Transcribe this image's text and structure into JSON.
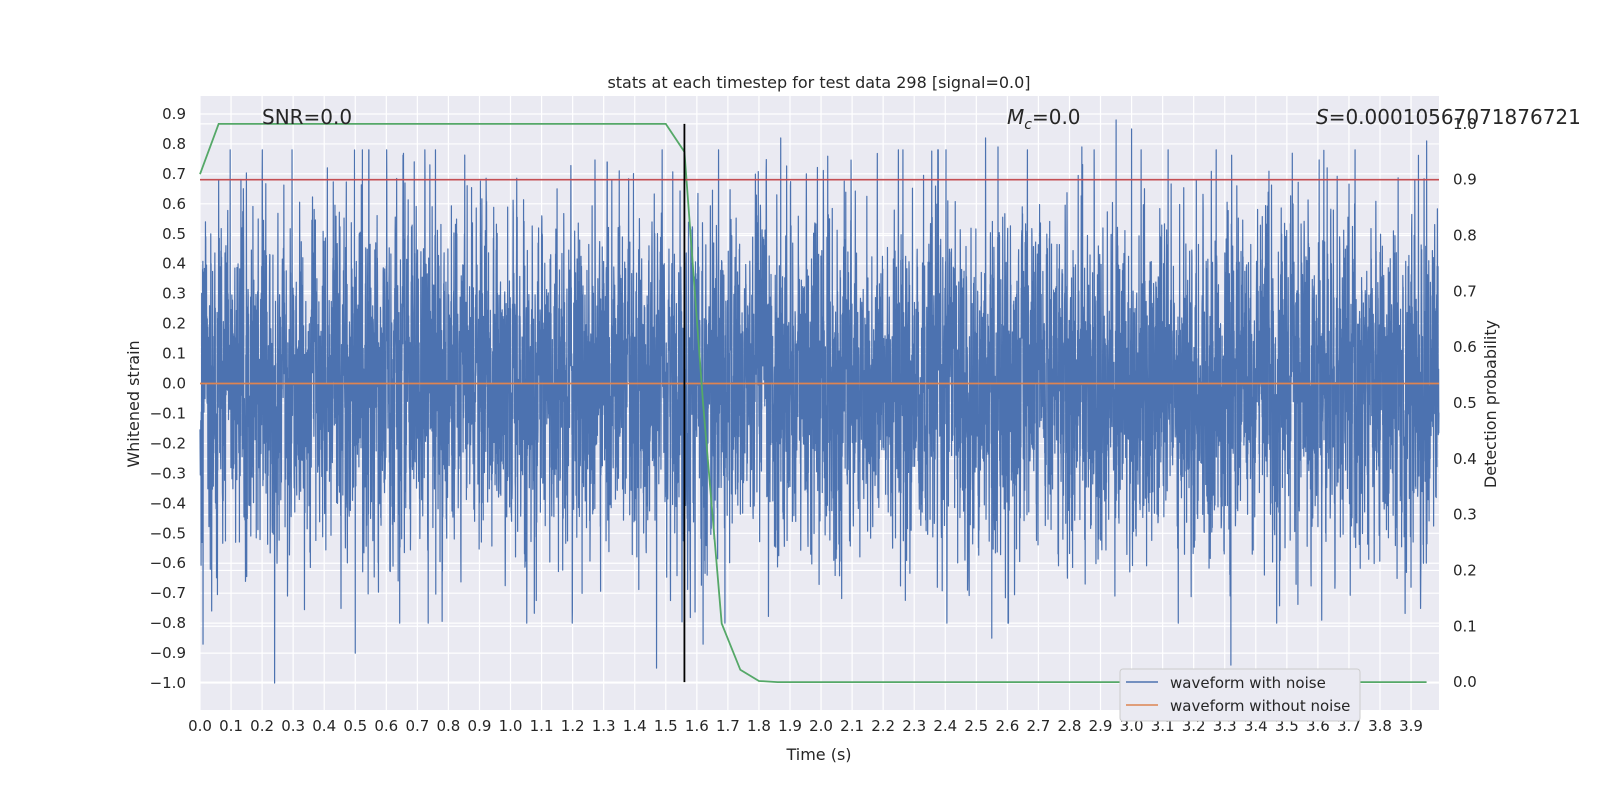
{
  "chart_data": {
    "type": "line",
    "title": "stats at each timestep for test data 298 [signal=0.0]",
    "xlabel": "Time (s)",
    "ylabel": "Whitened strain",
    "y2label": "Detection probability",
    "xlim": [
      0.0,
      3.99
    ],
    "ylim": [
      -1.09,
      0.96
    ],
    "y2lim": [
      -0.05,
      1.05
    ],
    "xticks": [
      "0.0",
      "0.1",
      "0.2",
      "0.3",
      "0.4",
      "0.5",
      "0.6",
      "0.7",
      "0.8",
      "0.9",
      "1.0",
      "1.1",
      "1.2",
      "1.3",
      "1.4",
      "1.5",
      "1.6",
      "1.7",
      "1.8",
      "1.9",
      "2.0",
      "2.1",
      "2.2",
      "2.3",
      "2.4",
      "2.5",
      "2.6",
      "2.7",
      "2.8",
      "2.9",
      "3.0",
      "3.1",
      "3.2",
      "3.3",
      "3.4",
      "3.5",
      "3.6",
      "3.7",
      "3.8",
      "3.9"
    ],
    "yticks": [
      "0.9",
      "0.8",
      "0.7",
      "0.6",
      "0.5",
      "0.4",
      "0.3",
      "0.2",
      "0.1",
      "0.0",
      "-0.1",
      "-0.2",
      "-0.3",
      "-0.4",
      "-0.5",
      "-0.6",
      "-0.7",
      "-0.8",
      "-0.9",
      "-1.0"
    ],
    "y2ticks": [
      "1.0",
      "0.9",
      "0.8",
      "0.7",
      "0.6",
      "0.5",
      "0.4",
      "0.3",
      "0.2",
      "0.1",
      "0.0"
    ],
    "grid": true,
    "legend_position": "lower-right",
    "annotations": {
      "snr": "SNR=0.0",
      "mc_symbol": "M",
      "mc_sub": "c",
      "mc_value": "=0.0",
      "s_symbol": "S",
      "s_value": "=0.00010567071876721"
    },
    "series": [
      {
        "name": "waveform with noise",
        "color": "#4c72b0",
        "axis": "left",
        "sample_rate": 2048,
        "amplitude_std": 0.27,
        "description_peaks": {
          "max_points": [
            {
              "t": 0.06,
              "y": 0.68
            },
            {
              "t": 0.2,
              "y": 0.69
            },
            {
              "t": 0.41,
              "y": 0.72
            },
            {
              "t": 0.69,
              "y": 0.74
            },
            {
              "t": 0.74,
              "y": 0.73
            },
            {
              "t": 1.15,
              "y": 0.65
            },
            {
              "t": 1.35,
              "y": 0.71
            },
            {
              "t": 1.87,
              "y": 0.82
            },
            {
              "t": 2.53,
              "y": 0.82
            },
            {
              "t": 2.57,
              "y": 0.79
            },
            {
              "t": 2.84,
              "y": 0.79
            },
            {
              "t": 2.95,
              "y": 0.88
            },
            {
              "t": 3.0,
              "y": 0.85
            },
            {
              "t": 3.63,
              "y": 0.72
            },
            {
              "t": 3.95,
              "y": 0.81
            }
          ],
          "min_points": [
            {
              "t": 0.01,
              "y": -0.87
            },
            {
              "t": 0.24,
              "y": -1.0
            },
            {
              "t": 0.5,
              "y": -0.9
            },
            {
              "t": 1.47,
              "y": -0.95
            },
            {
              "t": 1.62,
              "y": -0.87
            },
            {
              "t": 2.55,
              "y": -0.85
            },
            {
              "t": 3.32,
              "y": -0.94
            },
            {
              "t": 3.9,
              "y": -0.68
            }
          ]
        }
      },
      {
        "name": "waveform without noise",
        "color": "#dd8452",
        "axis": "left",
        "x": [
          0.0,
          3.99
        ],
        "y": [
          0.0,
          0.0
        ]
      },
      {
        "name": "",
        "color": "#55a868",
        "axis": "right",
        "x": [
          0.0,
          0.06,
          0.12,
          0.5,
          1.0,
          1.25,
          1.4,
          1.5,
          1.56,
          1.62,
          1.68,
          1.74,
          1.8,
          1.86,
          2.0,
          3.0,
          3.95
        ],
        "y": [
          0.91,
          1.0,
          1.0,
          1.0,
          1.0,
          1.0,
          1.0,
          1.0,
          0.95,
          0.5,
          0.105,
          0.022,
          0.002,
          0.0,
          0.0,
          0.0,
          0.0
        ]
      }
    ],
    "hlines": [
      {
        "axis": "right",
        "y": 0.9,
        "color": "#c44e52"
      }
    ],
    "vlines": [
      {
        "x": 1.56,
        "color": "#000000"
      }
    ]
  }
}
